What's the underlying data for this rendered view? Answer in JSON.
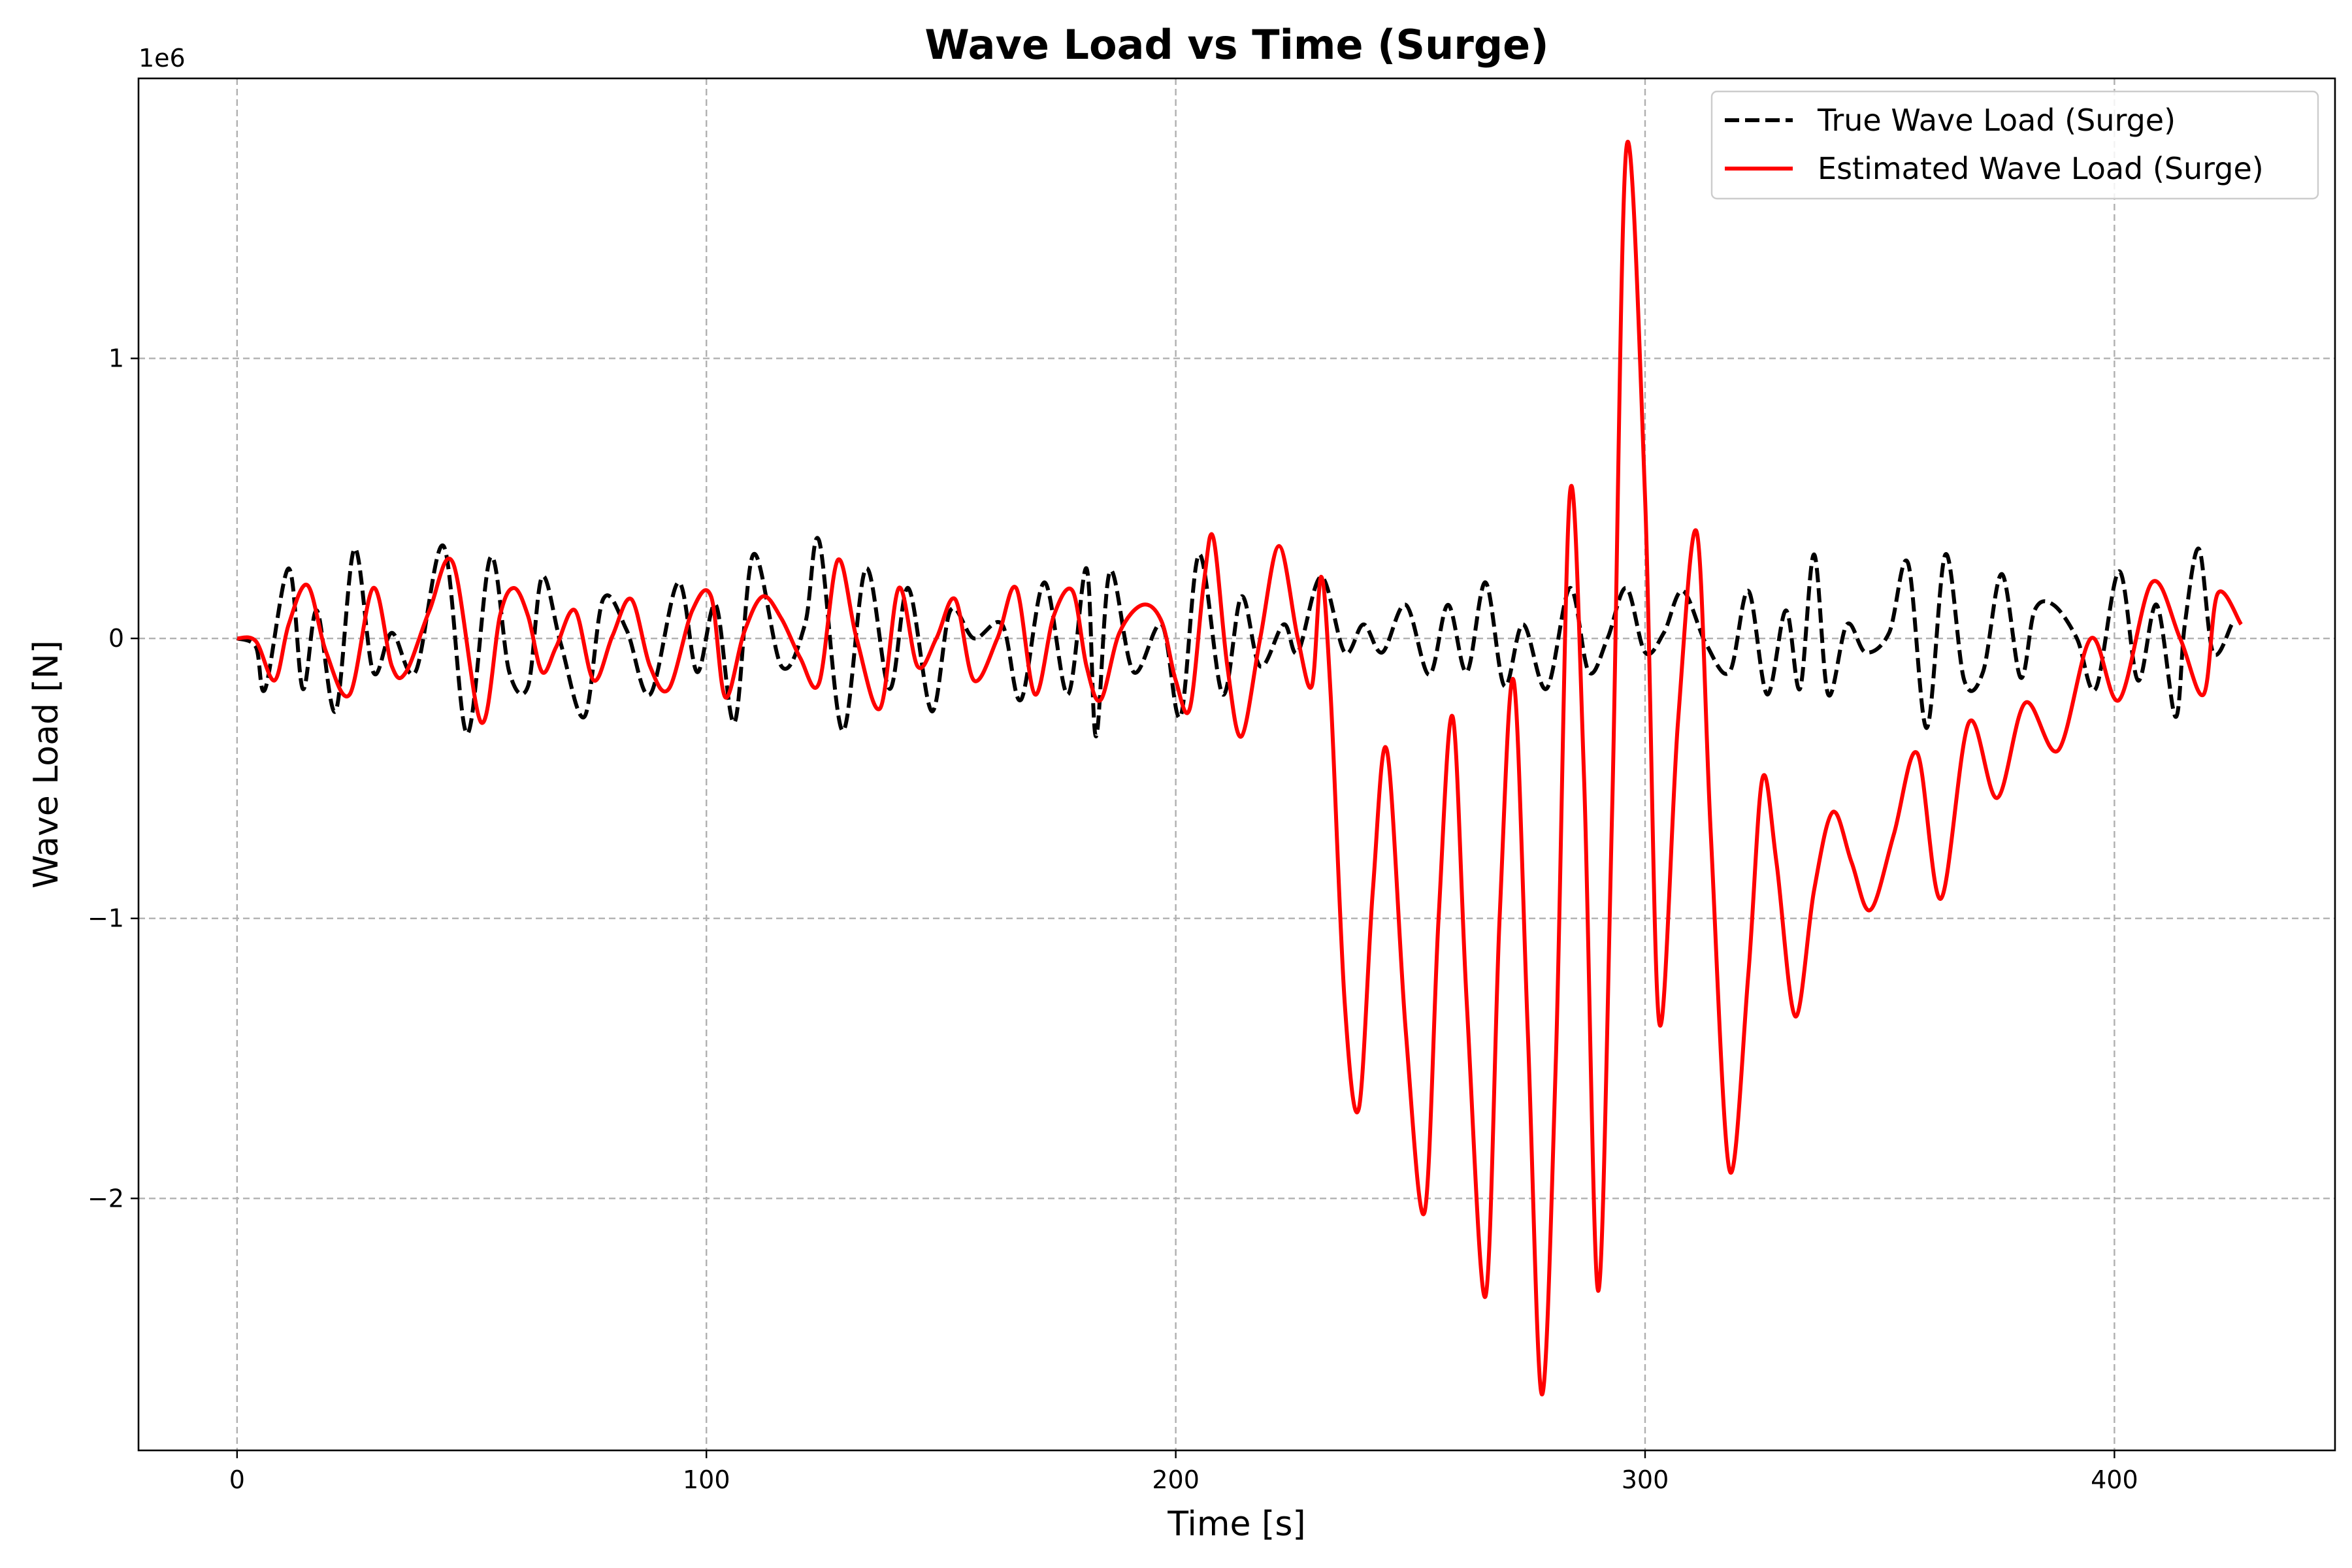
{
  "chart_data": {
    "type": "line",
    "title": "Wave Load vs Time (Surge)",
    "xlabel": "Time [s]",
    "ylabel": "Wave Load [N]",
    "y_offset_text": "1e6",
    "xlim": [
      -21,
      447
    ],
    "ylim": [
      -2.9,
      2.0
    ],
    "y_scale_factor": 1000000,
    "grid": true,
    "legend_position": "top-right",
    "x_ticks": [
      0,
      100,
      200,
      300,
      400
    ],
    "x_tick_labels": [
      "0",
      "100",
      "200",
      "300",
      "400"
    ],
    "y_ticks": [
      1,
      0,
      -1,
      -2
    ],
    "y_tick_labels": [
      "1",
      "0",
      "−1",
      "−2"
    ],
    "series": [
      {
        "name": "True Wave Load (Surge)",
        "color": "#000000",
        "style": "dashed",
        "x": [
          0,
          4,
          6,
          11,
          14,
          17,
          21,
          25,
          29,
          33,
          38,
          44,
          49,
          54,
          58,
          62,
          65,
          69,
          74,
          78,
          83,
          88,
          94,
          98,
          102,
          106,
          110,
          116,
          121,
          124,
          129,
          134,
          139,
          143,
          148,
          152,
          157,
          163,
          167,
          172,
          177,
          181,
          183,
          186,
          191,
          197,
          201,
          205,
          210,
          214,
          218,
          223,
          226,
          231,
          236,
          240,
          244,
          249,
          254,
          258,
          262,
          266,
          270,
          274,
          279,
          284,
          288,
          292,
          296,
          300,
          304,
          308,
          313,
          318,
          322,
          326,
          330,
          333,
          336,
          339,
          343,
          347,
          352,
          356,
          360,
          364,
          368,
          372,
          376,
          380,
          383,
          387,
          392,
          396,
          401,
          405,
          409,
          413,
          415,
          418,
          421,
          425
        ],
        "y": [
          0,
          -0.03,
          -0.18,
          0.25,
          -0.18,
          0.1,
          -0.26,
          0.32,
          -0.12,
          0.02,
          -0.12,
          0.33,
          -0.34,
          0.29,
          -0.12,
          -0.17,
          0.22,
          -0.02,
          -0.28,
          0.14,
          0.03,
          -0.2,
          0.2,
          -0.12,
          0.12,
          -0.3,
          0.3,
          -0.1,
          0.05,
          0.35,
          -0.33,
          0.25,
          -0.18,
          0.18,
          -0.26,
          0.1,
          0.0,
          0.05,
          -0.22,
          0.2,
          -0.2,
          0.25,
          -0.35,
          0.24,
          -0.12,
          0.05,
          -0.28,
          0.3,
          -0.2,
          0.15,
          -0.1,
          0.05,
          -0.05,
          0.22,
          -0.05,
          0.05,
          -0.05,
          0.12,
          -0.13,
          0.12,
          -0.12,
          0.2,
          -0.17,
          0.05,
          -0.18,
          0.18,
          -0.12,
          0.0,
          0.18,
          -0.05,
          0.02,
          0.17,
          -0.02,
          -0.12,
          0.17,
          -0.2,
          0.1,
          -0.18,
          0.3,
          -0.2,
          0.05,
          -0.05,
          0.02,
          0.27,
          -0.32,
          0.3,
          -0.15,
          -0.12,
          0.23,
          -0.14,
          0.1,
          0.12,
          0.0,
          -0.18,
          0.24,
          -0.15,
          0.12,
          -0.28,
          0.05,
          0.32,
          -0.05,
          0.05
        ]
      },
      {
        "name": "Estimated Wave Load (Surge)",
        "color": "#ff0000",
        "style": "solid",
        "x": [
          0,
          4,
          8,
          11,
          15,
          19,
          24,
          29,
          33,
          36,
          41,
          46,
          52,
          56,
          59,
          62,
          65,
          68,
          72,
          76,
          80,
          84,
          88,
          92,
          97,
          101,
          104,
          108,
          112,
          116,
          120,
          124,
          128,
          132,
          137,
          141,
          145,
          149,
          153,
          157,
          162,
          166,
          170,
          174,
          178,
          181,
          184,
          188,
          193,
          197,
          200,
          203,
          206,
          208,
          211,
          214,
          218,
          222,
          226,
          229,
          231,
          233,
          236,
          239,
          242,
          245,
          249,
          253,
          256,
          259,
          262,
          266,
          269,
          272,
          275,
          278,
          281,
          284,
          287,
          290,
          293,
          296,
          300,
          303,
          307,
          311,
          314,
          318,
          322,
          325,
          328,
          332,
          336,
          340,
          344,
          348,
          353,
          358,
          363,
          369,
          375,
          381,
          388,
          395,
          401,
          408,
          414,
          419,
          422,
          427
        ],
        "y": [
          0,
          -0.01,
          -0.15,
          0.05,
          0.19,
          -0.05,
          -0.2,
          0.18,
          -0.1,
          -0.12,
          0.1,
          0.27,
          -0.3,
          0.08,
          0.18,
          0.08,
          -0.12,
          -0.03,
          0.1,
          -0.15,
          0.01,
          0.14,
          -0.1,
          -0.18,
          0.1,
          0.15,
          -0.21,
          0.02,
          0.15,
          0.07,
          -0.07,
          -0.16,
          0.28,
          0.0,
          -0.25,
          0.18,
          -0.1,
          0.0,
          0.14,
          -0.15,
          0.0,
          0.18,
          -0.2,
          0.08,
          0.17,
          -0.1,
          -0.22,
          0.02,
          0.12,
          0.06,
          -0.15,
          -0.25,
          0.2,
          0.36,
          -0.1,
          -0.35,
          0.0,
          0.33,
          0.0,
          -0.17,
          0.22,
          -0.2,
          -1.3,
          -1.68,
          -0.9,
          -0.4,
          -1.4,
          -2.05,
          -1.0,
          -0.28,
          -1.3,
          -2.35,
          -1.0,
          -0.15,
          -1.4,
          -2.7,
          -1.5,
          0.52,
          -0.5,
          -2.33,
          -0.6,
          1.75,
          0.5,
          -1.37,
          -0.3,
          0.38,
          -0.7,
          -1.9,
          -1.2,
          -0.5,
          -0.8,
          -1.35,
          -0.9,
          -0.62,
          -0.8,
          -0.97,
          -0.7,
          -0.41,
          -0.93,
          -0.3,
          -0.57,
          -0.23,
          -0.4,
          0.0,
          -0.22,
          0.2,
          0.0,
          -0.2,
          0.16,
          0.05
        ]
      }
    ]
  }
}
